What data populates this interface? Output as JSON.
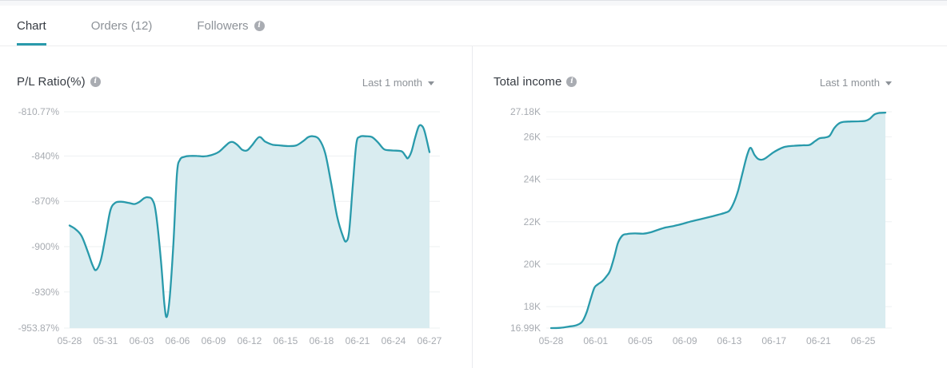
{
  "colors": {
    "accent": "#299aab",
    "area_fill": "#d9ecf0",
    "grid": "#eef0f2",
    "tick_text": "#a7abb1",
    "title_text": "#363b42",
    "inactive_text": "#8d9298"
  },
  "icons": {
    "info": "i"
  },
  "tabs": [
    {
      "label": "Chart",
      "active": true
    },
    {
      "label": "Orders (12)",
      "active": false
    },
    {
      "label": "Followers",
      "active": false,
      "has_info_icon": true
    }
  ],
  "chart_data": [
    {
      "type": "area",
      "title": "P/L Ratio(%)",
      "range_selector": "Last 1 month",
      "has_info_icon": true,
      "grid": true,
      "legend": "none",
      "x_domain": [
        0,
        30
      ],
      "y_domain": [
        -953.87,
        -810.77
      ],
      "y_ticks": [
        {
          "label": "-810.77%",
          "v": -810.77
        },
        {
          "label": "-840%",
          "v": -840
        },
        {
          "label": "-870%",
          "v": -870
        },
        {
          "label": "-900%",
          "v": -900
        },
        {
          "label": "-930%",
          "v": -930
        },
        {
          "label": "-953.87%",
          "v": -953.87
        }
      ],
      "x_ticks": [
        {
          "label": "05-28",
          "x": 0
        },
        {
          "label": "05-31",
          "x": 3
        },
        {
          "label": "06-03",
          "x": 6
        },
        {
          "label": "06-06",
          "x": 9
        },
        {
          "label": "06-09",
          "x": 12
        },
        {
          "label": "06-12",
          "x": 15
        },
        {
          "label": "06-15",
          "x": 18
        },
        {
          "label": "06-18",
          "x": 21
        },
        {
          "label": "06-21",
          "x": 24
        },
        {
          "label": "06-24",
          "x": 27
        },
        {
          "label": "06-27",
          "x": 30
        }
      ],
      "points": [
        [
          0,
          -886
        ],
        [
          0.5,
          -888.5
        ],
        [
          1,
          -893
        ],
        [
          1.5,
          -903
        ],
        [
          1.9,
          -912
        ],
        [
          2.2,
          -915.5
        ],
        [
          2.6,
          -909
        ],
        [
          3,
          -893
        ],
        [
          3.4,
          -876
        ],
        [
          3.8,
          -871
        ],
        [
          4.3,
          -870.3
        ],
        [
          4.9,
          -871
        ],
        [
          5.4,
          -871.8
        ],
        [
          5.8,
          -870.5
        ],
        [
          6.2,
          -868
        ],
        [
          6.5,
          -867.3
        ],
        [
          6.9,
          -869
        ],
        [
          7.2,
          -878
        ],
        [
          7.6,
          -908
        ],
        [
          7.9,
          -938
        ],
        [
          8.1,
          -946.5
        ],
        [
          8.35,
          -933
        ],
        [
          8.65,
          -898
        ],
        [
          8.95,
          -852
        ],
        [
          9.2,
          -842.5
        ],
        [
          9.6,
          -840.5
        ],
        [
          10,
          -840
        ],
        [
          10.6,
          -840
        ],
        [
          11.2,
          -840.3
        ],
        [
          11.8,
          -839.5
        ],
        [
          12.4,
          -837.5
        ],
        [
          12.9,
          -834
        ],
        [
          13.3,
          -831.2
        ],
        [
          13.6,
          -830.8
        ],
        [
          14,
          -832.8
        ],
        [
          14.4,
          -836
        ],
        [
          14.8,
          -836.3
        ],
        [
          15.2,
          -833
        ],
        [
          15.8,
          -827.5
        ],
        [
          16.3,
          -830.5
        ],
        [
          16.9,
          -832.5
        ],
        [
          17.5,
          -833
        ],
        [
          18.2,
          -833.5
        ],
        [
          18.9,
          -833
        ],
        [
          19.5,
          -830
        ],
        [
          19.9,
          -827.5
        ],
        [
          20.3,
          -827
        ],
        [
          20.8,
          -829
        ],
        [
          21.3,
          -838
        ],
        [
          21.8,
          -858
        ],
        [
          22.3,
          -880
        ],
        [
          22.8,
          -893.5
        ],
        [
          23.05,
          -896.5
        ],
        [
          23.3,
          -890
        ],
        [
          23.6,
          -860
        ],
        [
          23.9,
          -832
        ],
        [
          24.2,
          -827.3
        ],
        [
          24.7,
          -827
        ],
        [
          25.2,
          -827.5
        ],
        [
          25.7,
          -831
        ],
        [
          26.2,
          -835.5
        ],
        [
          26.7,
          -836.3
        ],
        [
          27.2,
          -836.5
        ],
        [
          27.7,
          -837
        ],
        [
          28,
          -840
        ],
        [
          28.2,
          -841.5
        ],
        [
          28.5,
          -837
        ],
        [
          28.8,
          -828
        ],
        [
          29.1,
          -820.5
        ],
        [
          29.35,
          -820
        ],
        [
          29.6,
          -824
        ],
        [
          30,
          -837.5
        ]
      ]
    },
    {
      "type": "area",
      "title": "Total income",
      "range_selector": "Last 1 month",
      "has_info_icon": true,
      "grid": true,
      "legend": "none",
      "x_domain": [
        0,
        30
      ],
      "y_domain": [
        16.99,
        27.18
      ],
      "y_ticks": [
        {
          "label": "27.18K",
          "v": 27.18
        },
        {
          "label": "26K",
          "v": 26
        },
        {
          "label": "24K",
          "v": 24
        },
        {
          "label": "22K",
          "v": 22
        },
        {
          "label": "20K",
          "v": 20
        },
        {
          "label": "18K",
          "v": 18
        },
        {
          "label": "16.99K",
          "v": 16.99
        }
      ],
      "x_ticks": [
        {
          "label": "05-28",
          "x": 0
        },
        {
          "label": "06-01",
          "x": 4
        },
        {
          "label": "06-05",
          "x": 8
        },
        {
          "label": "06-09",
          "x": 12
        },
        {
          "label": "06-13",
          "x": 16
        },
        {
          "label": "06-17",
          "x": 20
        },
        {
          "label": "06-21",
          "x": 24
        },
        {
          "label": "06-25",
          "x": 28
        }
      ],
      "points": [
        [
          0,
          16.99
        ],
        [
          0.8,
          17.0
        ],
        [
          1.6,
          17.06
        ],
        [
          2.3,
          17.13
        ],
        [
          2.8,
          17.3
        ],
        [
          3.2,
          17.75
        ],
        [
          3.6,
          18.45
        ],
        [
          3.9,
          18.9
        ],
        [
          4.2,
          19.05
        ],
        [
          4.6,
          19.2
        ],
        [
          5,
          19.45
        ],
        [
          5.3,
          19.7
        ],
        [
          5.7,
          20.4
        ],
        [
          6,
          21
        ],
        [
          6.4,
          21.35
        ],
        [
          6.8,
          21.42
        ],
        [
          7.5,
          21.45
        ],
        [
          8.3,
          21.44
        ],
        [
          8.9,
          21.5
        ],
        [
          9.6,
          21.62
        ],
        [
          10.3,
          21.73
        ],
        [
          11,
          21.8
        ],
        [
          11.8,
          21.9
        ],
        [
          12.6,
          22.02
        ],
        [
          13.4,
          22.12
        ],
        [
          14.2,
          22.22
        ],
        [
          15,
          22.33
        ],
        [
          15.6,
          22.42
        ],
        [
          16,
          22.52
        ],
        [
          16.4,
          22.9
        ],
        [
          16.8,
          23.5
        ],
        [
          17.2,
          24.35
        ],
        [
          17.6,
          25.15
        ],
        [
          17.9,
          25.48
        ],
        [
          18.25,
          25.15
        ],
        [
          18.6,
          24.95
        ],
        [
          19,
          24.93
        ],
        [
          19.4,
          25.05
        ],
        [
          19.9,
          25.25
        ],
        [
          20.4,
          25.4
        ],
        [
          21,
          25.53
        ],
        [
          21.8,
          25.58
        ],
        [
          22.6,
          25.6
        ],
        [
          23.2,
          25.62
        ],
        [
          23.7,
          25.8
        ],
        [
          24.1,
          25.93
        ],
        [
          24.6,
          25.97
        ],
        [
          25,
          26.05
        ],
        [
          25.4,
          26.4
        ],
        [
          25.8,
          26.62
        ],
        [
          26.2,
          26.7
        ],
        [
          26.9,
          26.72
        ],
        [
          27.6,
          26.73
        ],
        [
          28.2,
          26.75
        ],
        [
          28.6,
          26.85
        ],
        [
          29,
          27.05
        ],
        [
          29.4,
          27.12
        ],
        [
          30,
          27.14
        ]
      ]
    }
  ]
}
